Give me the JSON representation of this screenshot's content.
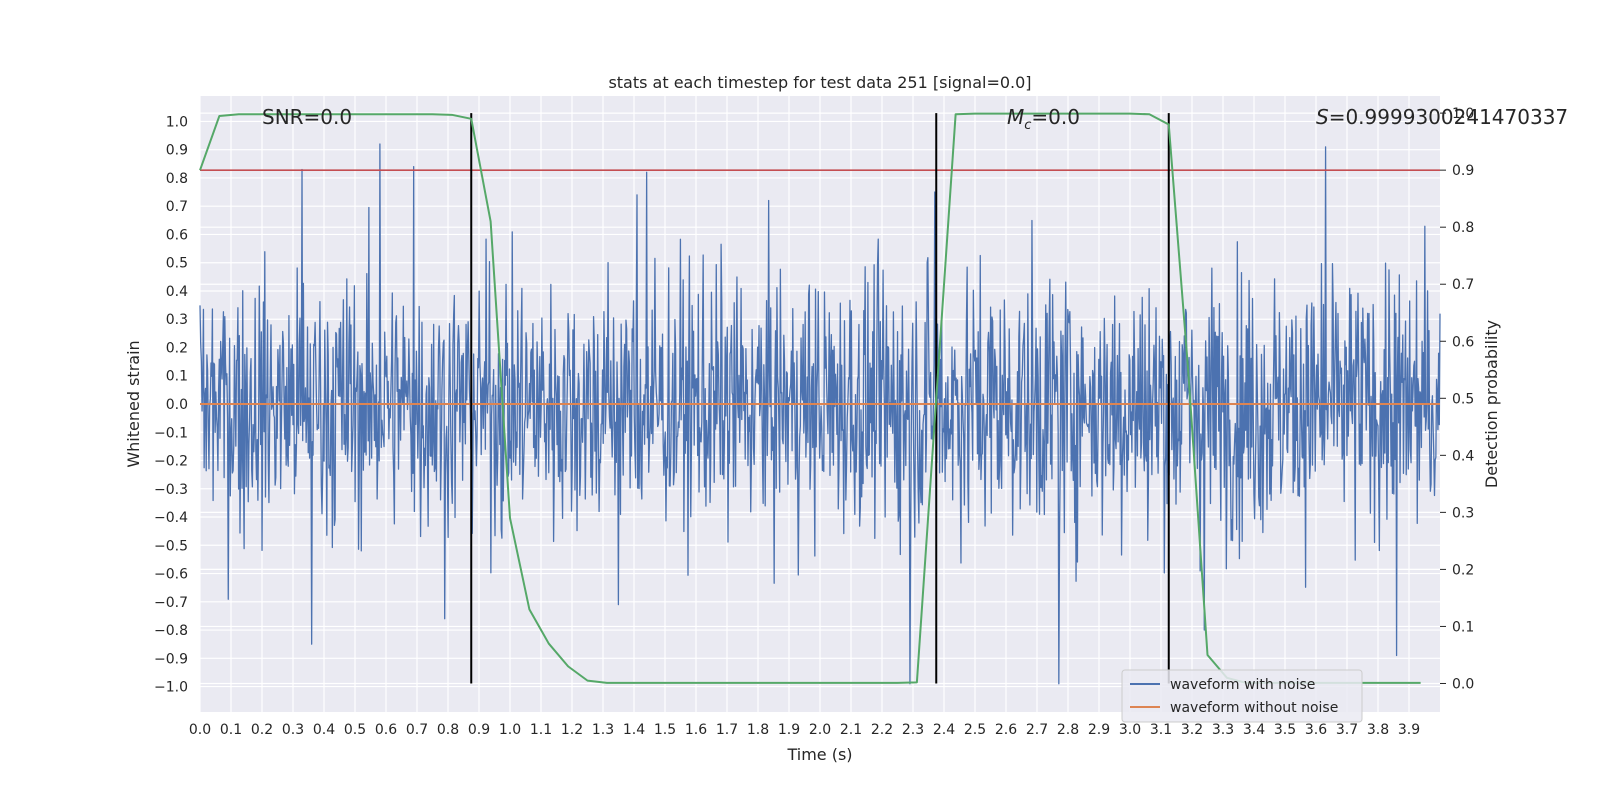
{
  "chart_data": {
    "type": "line",
    "title": "stats at each timestep for test data 251 [signal=0.0]",
    "xlabel": "Time (s)",
    "ylabel": "Whitened strain",
    "y2label": "Detection probability",
    "xlim": [
      0.0,
      4.0
    ],
    "ylim": [
      -1.09,
      1.09
    ],
    "y2lim": [
      -0.05,
      1.03
    ],
    "xticks": [
      "0.0",
      "0.1",
      "0.2",
      "0.3",
      "0.4",
      "0.5",
      "0.6",
      "0.7",
      "0.8",
      "0.9",
      "1.0",
      "1.1",
      "1.2",
      "1.3",
      "1.4",
      "1.5",
      "1.6",
      "1.7",
      "1.8",
      "1.9",
      "2.0",
      "2.1",
      "2.2",
      "2.3",
      "2.4",
      "2.5",
      "2.6",
      "2.7",
      "2.8",
      "2.9",
      "3.0",
      "3.1",
      "3.2",
      "3.3",
      "3.4",
      "3.5",
      "3.6",
      "3.7",
      "3.8",
      "3.9"
    ],
    "yticks": [
      "1.0",
      "0.9",
      "0.8",
      "0.7",
      "0.6",
      "0.5",
      "0.4",
      "0.3",
      "0.2",
      "0.1",
      "0.0",
      "−0.1",
      "−0.2",
      "−0.3",
      "−0.4",
      "−0.5",
      "−0.6",
      "−0.7",
      "−0.8",
      "−0.9",
      "−1.0"
    ],
    "y2ticks": [
      "1.0",
      "0.9",
      "0.8",
      "0.7",
      "0.6",
      "0.5",
      "0.4",
      "0.3",
      "0.2",
      "0.1",
      "0.0"
    ],
    "annotations": {
      "snr": "SNR=0.0",
      "mc_symbol": "M",
      "mc_sub": "c",
      "mc_value": "=0.0",
      "s_symbol": "S",
      "s_value": "=0.9999300241470337"
    },
    "legend": {
      "position": "lower-right",
      "entries": [
        "waveform with noise",
        "waveform without noise"
      ]
    },
    "threshold": 0.9,
    "vlines": [
      0.875,
      2.375,
      3.125
    ],
    "series": [
      {
        "name": "waveform with noise",
        "color": "#4c72b0",
        "note": "whitened strain noise, typical amplitude about ±0.3, peaks reaching about 0.9 and −0.99",
        "peaks": [
          [
            0.33,
            0.83
          ],
          [
            0.58,
            0.92
          ],
          [
            0.69,
            0.84
          ],
          [
            1.41,
            0.74
          ],
          [
            1.44,
            0.82
          ],
          [
            2.37,
            0.75
          ],
          [
            3.63,
            0.91
          ]
        ],
        "troughs": [
          [
            0.36,
            -0.85
          ],
          [
            0.79,
            -0.76
          ],
          [
            1.35,
            -0.71
          ],
          [
            2.29,
            -0.99
          ],
          [
            2.77,
            -0.99
          ],
          [
            3.24,
            -0.8
          ],
          [
            3.86,
            -0.89
          ]
        ]
      },
      {
        "name": "waveform without noise",
        "color": "#dd8452",
        "x": [
          0.0,
          4.0
        ],
        "y": [
          0.0,
          0.0
        ]
      },
      {
        "name": "detection probability",
        "color": "#55a868",
        "axis": "right",
        "x": [
          0.0,
          0.0625,
          0.125,
          0.1875,
          0.25,
          0.3125,
          0.375,
          0.4375,
          0.5,
          0.5625,
          0.625,
          0.6875,
          0.75,
          0.8125,
          0.875,
          0.9375,
          1.0,
          1.0625,
          1.125,
          1.1875,
          1.25,
          1.3125,
          1.375,
          1.4375,
          1.5,
          1.5625,
          1.625,
          1.6875,
          1.75,
          1.8125,
          1.875,
          1.9375,
          2.0,
          2.0625,
          2.125,
          2.1875,
          2.25,
          2.3125,
          2.375,
          2.4375,
          2.5,
          2.5625,
          2.625,
          2.6875,
          2.75,
          2.8125,
          2.875,
          2.9375,
          3.0,
          3.0625,
          3.125,
          3.1875,
          3.25,
          3.3125,
          3.375,
          3.4375,
          3.5,
          3.5625,
          3.625,
          3.6875,
          3.75,
          3.8125,
          3.875,
          3.9375
        ],
        "y": [
          0.9,
          0.995,
          0.998,
          0.998,
          0.998,
          0.998,
          0.998,
          0.998,
          0.998,
          0.998,
          0.998,
          0.998,
          0.998,
          0.997,
          0.99,
          0.81,
          0.29,
          0.13,
          0.07,
          0.03,
          0.005,
          0.001,
          0.001,
          0.001,
          0.001,
          0.001,
          0.001,
          0.001,
          0.001,
          0.001,
          0.001,
          0.001,
          0.001,
          0.001,
          0.001,
          0.001,
          0.001,
          0.002,
          0.5,
          0.998,
          0.999,
          0.999,
          0.999,
          0.999,
          0.999,
          0.999,
          0.999,
          0.999,
          0.999,
          0.998,
          0.98,
          0.55,
          0.05,
          0.01,
          0.001,
          0.001,
          0.001,
          0.001,
          0.001,
          0.001,
          0.001,
          0.001,
          0.001,
          0.001
        ]
      }
    ]
  }
}
